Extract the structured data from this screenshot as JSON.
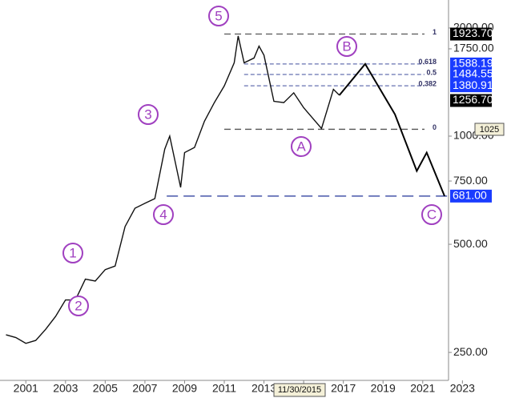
{
  "chart_data": {
    "type": "line",
    "log_scale": true,
    "x": [
      2000.0,
      2000.5,
      2001.0,
      2001.5,
      2002.0,
      2002.5,
      2003.0,
      2003.5,
      2004.0,
      2004.5,
      2005.0,
      2005.5,
      2006.0,
      2006.5,
      2007.0,
      2007.5,
      2008.0,
      2008.25,
      2008.8,
      2009.0,
      2009.5,
      2010.0,
      2010.5,
      2011.0,
      2011.5,
      2011.7,
      2012.0,
      2012.5,
      2012.75,
      2013.0,
      2013.5,
      2014.0,
      2014.5,
      2015.0,
      2015.9,
      2016.5,
      2016.8
    ],
    "series": [
      {
        "color": "#111111",
        "values": [
          280,
          275,
          265,
          270,
          290,
          315,
          350,
          350,
          400,
          395,
          425,
          435,
          560,
          630,
          650,
          670,
          920,
          1000,
          720,
          900,
          930,
          1100,
          1240,
          1380,
          1600,
          1900,
          1600,
          1650,
          1780,
          1680,
          1250,
          1240,
          1320,
          1200,
          1050,
          1350,
          1300
        ]
      }
    ],
    "projection": {
      "color": "#000000",
      "x": [
        2016.8,
        2018.1,
        2019.6,
        2020.7,
        2021.2,
        2022.1
      ],
      "values": [
        1300,
        1588.19,
        1150,
        800,
        900,
        681
      ]
    },
    "xlim": [
      1999.9,
      2022.3
    ],
    "xticks": [
      2001,
      2003,
      2005,
      2007,
      2009,
      2011,
      2013,
      2015,
      2017,
      2019,
      2021,
      2023
    ],
    "ylim": [
      209,
      2393
    ],
    "yticks": [
      {
        "value": 250,
        "label": "250.00"
      },
      {
        "value": 500,
        "label": "500.00"
      },
      {
        "value": 750,
        "label": "750.00"
      },
      {
        "value": 1000,
        "label": "1000.00"
      },
      {
        "value": 1750,
        "label": "1750.00"
      },
      {
        "value": 2000,
        "label": "2000.00"
      }
    ],
    "fib_levels": [
      {
        "value": 1923.7,
        "label": "1"
      },
      {
        "value": 1588.19,
        "label": "0.618"
      },
      {
        "value": 1484.55,
        "label": "0.5"
      },
      {
        "value": 1380.91,
        "label": "0.382"
      },
      {
        "value": 1045,
        "label": "0"
      }
    ],
    "support_level": 681,
    "price_tags": [
      {
        "value": 1923.7,
        "label": "1923.70",
        "color": "#000000"
      },
      {
        "value": 1588.19,
        "label": "1588.19",
        "color": "#1a3cff"
      },
      {
        "value": 1484.55,
        "label": "1484.55",
        "color": "#1a3cff"
      },
      {
        "value": 1380.91,
        "label": "1380.91",
        "color": "#1a3cff"
      },
      {
        "value": 1256.7,
        "label": "1256.70",
        "color": "#000000"
      },
      {
        "value": 681,
        "label": "681.00",
        "color": "#1a3cff"
      }
    ],
    "wave_labels": [
      "1",
      "2",
      "3",
      "4",
      "5",
      "A",
      "B",
      "C"
    ],
    "wave_color": "#a040c0",
    "cursor_date": "11/30/2015",
    "cursor_price": "1025"
  }
}
